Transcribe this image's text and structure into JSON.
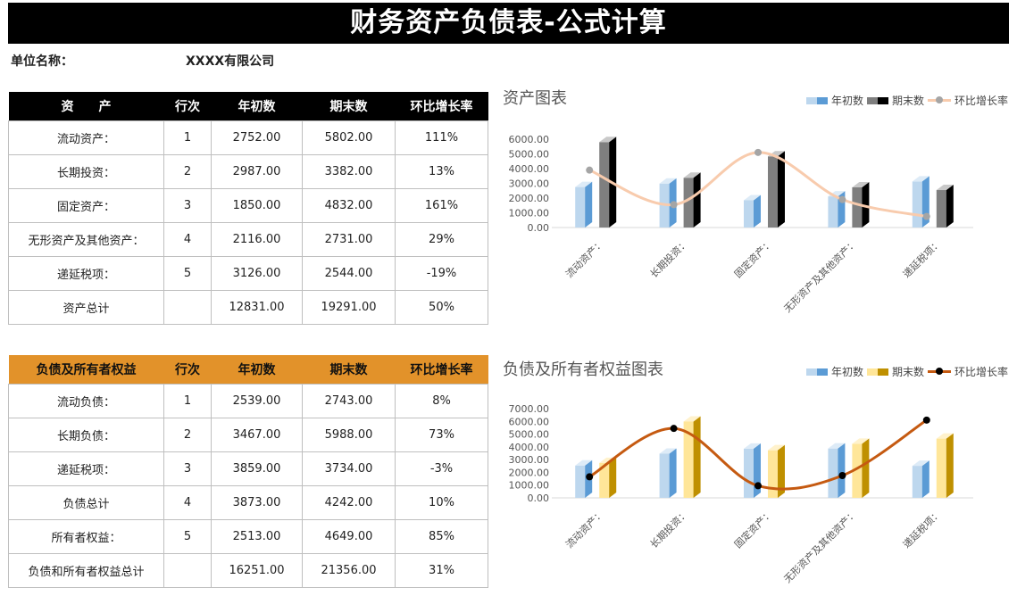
{
  "header": {
    "title": "财务资产负债表-公式计算",
    "unit_label": "单位名称：",
    "unit_value": "XXXX有限公司"
  },
  "assets_table": {
    "headers": [
      "资　　产",
      "行次",
      "年初数",
      "期末数",
      "环比增长率"
    ],
    "rows": [
      {
        "name": "流动资产：",
        "line": "1",
        "begin": "2752.00",
        "end": "5802.00",
        "growth": "111%"
      },
      {
        "name": "长期投资：",
        "line": "2",
        "begin": "2987.00",
        "end": "3382.00",
        "growth": "13%"
      },
      {
        "name": "固定资产：",
        "line": "3",
        "begin": "1850.00",
        "end": "4832.00",
        "growth": "161%"
      },
      {
        "name": "无形资产及其他资产：",
        "line": "4",
        "begin": "2116.00",
        "end": "2731.00",
        "growth": "29%"
      },
      {
        "name": "递延税项：",
        "line": "5",
        "begin": "3126.00",
        "end": "2544.00",
        "growth": "-19%"
      },
      {
        "name": "资产总计",
        "line": "",
        "begin": "12831.00",
        "end": "19291.00",
        "growth": "50%"
      }
    ]
  },
  "liabilities_table": {
    "headers": [
      "负债及所有者权益",
      "行次",
      "年初数",
      "期末数",
      "环比增长率"
    ],
    "rows": [
      {
        "name": "流动负债：",
        "line": "1",
        "begin": "2539.00",
        "end": "2743.00",
        "growth": "8%"
      },
      {
        "name": "长期负债：",
        "line": "2",
        "begin": "3467.00",
        "end": "5988.00",
        "growth": "73%"
      },
      {
        "name": "递延税项：",
        "line": "3",
        "begin": "3859.00",
        "end": "3734.00",
        "growth": "-3%"
      },
      {
        "name": "负债总计",
        "line": "4",
        "begin": "3873.00",
        "end": "4242.00",
        "growth": "10%"
      },
      {
        "name": "所有者权益：",
        "line": "5",
        "begin": "2513.00",
        "end": "4649.00",
        "growth": "85%"
      },
      {
        "name": "负债和所有者权益总计",
        "line": "",
        "begin": "16251.00",
        "end": "21356.00",
        "growth": "31%"
      }
    ]
  },
  "chart_data": [
    {
      "type": "bar",
      "title": "资产图表",
      "categories": [
        "流动资产：",
        "长期投资：",
        "固定资产：",
        "无形资产及其他资产：",
        "递延税项："
      ],
      "series": [
        {
          "name": "年初数",
          "kind": "bar3d",
          "values": [
            2752,
            2987,
            1850,
            2116,
            3126
          ],
          "colors": [
            "#bdd7ee",
            "#5b9bd5"
          ]
        },
        {
          "name": "期末数",
          "kind": "bar3d",
          "values": [
            5802,
            3382,
            4832,
            2731,
            2544
          ],
          "colors": [
            "#7f7f7f",
            "#000000"
          ]
        },
        {
          "name": "环比增长率",
          "kind": "line",
          "values": [
            1.11,
            0.13,
            1.61,
            0.29,
            -0.19
          ],
          "plotted_y": [
            3900,
            1550,
            5100,
            1900,
            750
          ],
          "colors": [
            "#f8cbad",
            "#a5a5a5"
          ]
        }
      ],
      "yticks": [
        "6000.00",
        "5000.00",
        "4000.00",
        "3000.00",
        "2000.00",
        "1000.00",
        "0.00"
      ],
      "ylim": [
        0,
        6000
      ],
      "legend_position": "top-right"
    },
    {
      "type": "bar",
      "title": "负债及所有者权益图表",
      "categories": [
        "流动资产：",
        "长期投资：",
        "固定资产：",
        "无形资产及其他资产：",
        "递延税项："
      ],
      "series": [
        {
          "name": "年初数",
          "kind": "bar3d",
          "values": [
            2539,
            3467,
            3859,
            3873,
            2513
          ],
          "colors": [
            "#bdd7ee",
            "#5b9bd5"
          ]
        },
        {
          "name": "期末数",
          "kind": "bar3d",
          "values": [
            2743,
            5988,
            3734,
            4242,
            4649
          ],
          "colors": [
            "#ffe699",
            "#bf9000"
          ]
        },
        {
          "name": "环比增长率",
          "kind": "line",
          "values": [
            0.08,
            0.73,
            -0.03,
            0.1,
            0.85
          ],
          "plotted_y": [
            1650,
            5450,
            950,
            1750,
            6100
          ],
          "colors": [
            "#c55a11",
            "#000000"
          ]
        }
      ],
      "yticks": [
        "7000.00",
        "6000.00",
        "5000.00",
        "4000.00",
        "3000.00",
        "2000.00",
        "1000.00",
        "0.00"
      ],
      "ylim": [
        0,
        7000
      ],
      "legend_position": "top-right"
    }
  ]
}
